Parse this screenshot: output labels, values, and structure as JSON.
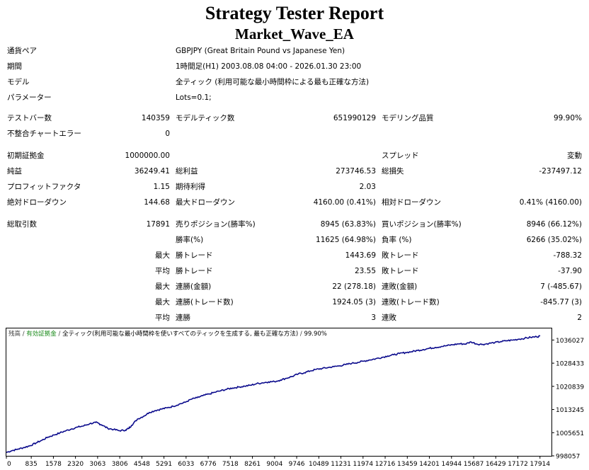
{
  "header": {
    "title": "Strategy Tester Report",
    "ea_name": "Market_Wave_EA"
  },
  "info": [
    {
      "label": "通貨ペア",
      "value": "GBPJPY (Great Britain Pound vs Japanese Yen)"
    },
    {
      "label": "期間",
      "value": "1時間足(H1) 2003.08.08 04:00 - 2026.01.30 23:00"
    },
    {
      "label": "モデル",
      "value": "全ティック (利用可能な最小時間枠による最も正確な方法)"
    },
    {
      "label": "パラメーター",
      "value": "Lots=0.1;"
    }
  ],
  "stats": {
    "test_bars": {
      "label": "テストバー数",
      "value": "140359"
    },
    "model_ticks": {
      "label": "モデルティック数",
      "value": "651990129"
    },
    "modeling_quality": {
      "label": "モデリング品質",
      "value": "99.90%"
    },
    "mismatched_errors": {
      "label": "不整合チャートエラー",
      "value": "0"
    },
    "initial_deposit": {
      "label": "初期証拠金",
      "value": "1000000.00"
    },
    "spread": {
      "label": "スプレッド",
      "value": "変動"
    },
    "net_profit": {
      "label": "純益",
      "value": "36249.41"
    },
    "gross_profit": {
      "label": "総利益",
      "value": "273746.53"
    },
    "gross_loss": {
      "label": "総損失",
      "value": "-237497.12"
    },
    "profit_factor": {
      "label": "プロフィットファクタ",
      "value": "1.15"
    },
    "expected_payoff": {
      "label": "期待利得",
      "value": "2.03"
    },
    "abs_drawdown": {
      "label": "絶対ドローダウン",
      "value": "144.68"
    },
    "max_drawdown": {
      "label": "最大ドローダウン",
      "value": "4160.00 (0.41%)"
    },
    "rel_drawdown": {
      "label": "相対ドローダウン",
      "value": "0.41% (4160.00)"
    },
    "total_trades": {
      "label": "総取引数",
      "value": "17891"
    },
    "short_positions": {
      "label": "売りポジション(勝率%)",
      "value": "8945 (63.83%)"
    },
    "long_positions": {
      "label": "買いポジション(勝率%)",
      "value": "8946 (66.12%)"
    },
    "profit_trades": {
      "label": "勝率(%)",
      "value": "11625 (64.98%)"
    },
    "loss_trades": {
      "label": "負率 (%)",
      "value": "6266 (35.02%)"
    },
    "largest_prefix": "最大",
    "average_prefix": "平均",
    "largest_profit": {
      "label": "勝トレード",
      "value": "1443.69"
    },
    "largest_loss": {
      "label": "敗トレード",
      "value": "-788.32"
    },
    "average_profit": {
      "label": "勝トレード",
      "value": "23.55"
    },
    "average_loss": {
      "label": "敗トレード",
      "value": "-37.90"
    },
    "max_consec_wins": {
      "label": "連勝(金額)",
      "value": "22 (278.18)"
    },
    "max_consec_losses": {
      "label": "連敗(金額)",
      "value": "7 (-485.67)"
    },
    "max_consec_profit": {
      "label": "連勝(トレード数)",
      "value": "1924.05 (3)"
    },
    "max_consec_loss": {
      "label": "連敗(トレード数)",
      "value": "-845.77 (3)"
    },
    "avg_consec_wins": {
      "label": "連勝",
      "value": "3"
    },
    "avg_consec_losses": {
      "label": "連敗",
      "value": "2"
    }
  },
  "chart_data": {
    "type": "line",
    "legend": {
      "balance": "残高",
      "sep1": " / ",
      "equity": "有効証拠金",
      "sep2": " / ",
      "model": "全ティック(利用可能な最小時間枠を使いすべてのティックを生成する, 最も正確な方法)",
      "sep3": " / ",
      "quality": "99.90%"
    },
    "x_ticks": [
      "0",
      "835",
      "1578",
      "2320",
      "3063",
      "3806",
      "4548",
      "5291",
      "6033",
      "6776",
      "7518",
      "8261",
      "9004",
      "9746",
      "10489",
      "11231",
      "11974",
      "12716",
      "13459",
      "14201",
      "14944",
      "15687",
      "16429",
      "17172",
      "17914"
    ],
    "y_ticks": [
      "1036027",
      "1028433",
      "1020839",
      "1013245",
      "1005651",
      "998057"
    ],
    "ylim": [
      998057,
      1039824
    ],
    "xlim": [
      0,
      18300
    ],
    "line_color": "#0a0a8c",
    "x": [
      0,
      200,
      400,
      600,
      800,
      1000,
      1200,
      1400,
      1600,
      1800,
      2000,
      2200,
      2400,
      2600,
      2800,
      3000,
      3100,
      3200,
      3400,
      3600,
      3800,
      4000,
      4100,
      4200,
      4400,
      4600,
      4800,
      5000,
      5200,
      5400,
      5600,
      5800,
      6000,
      6200,
      6400,
      6600,
      6800,
      7000,
      7200,
      7400,
      7600,
      7800,
      8000,
      8200,
      8400,
      8600,
      8800,
      9000,
      9200,
      9400,
      9600,
      9800,
      10000,
      10200,
      10400,
      10600,
      10800,
      11000,
      11200,
      11400,
      11600,
      11800,
      12000,
      12200,
      12400,
      12600,
      12800,
      13000,
      13200,
      13400,
      13600,
      13800,
      14000,
      14200,
      14400,
      14600,
      14800,
      15000,
      15200,
      15400,
      15600,
      15800,
      16000,
      16200,
      16400,
      16600,
      16800,
      17000,
      17200,
      17400,
      17600,
      17800,
      17914
    ],
    "y": [
      999200,
      999800,
      1000300,
      1000800,
      1001400,
      1002300,
      1003200,
      1004200,
      1004900,
      1005600,
      1006300,
      1006900,
      1007500,
      1007900,
      1008600,
      1009000,
      1008700,
      1008200,
      1007100,
      1006700,
      1006300,
      1006500,
      1007000,
      1008000,
      1010100,
      1011000,
      1012300,
      1012900,
      1013400,
      1013800,
      1014300,
      1015000,
      1015600,
      1016600,
      1017100,
      1017800,
      1018300,
      1018900,
      1019400,
      1019900,
      1020300,
      1020600,
      1020900,
      1021200,
      1021700,
      1022000,
      1022300,
      1022400,
      1022900,
      1023500,
      1024100,
      1024900,
      1025300,
      1025900,
      1026400,
      1026700,
      1027000,
      1027300,
      1027600,
      1028000,
      1028400,
      1028700,
      1029100,
      1029500,
      1029900,
      1030300,
      1030800,
      1031200,
      1031600,
      1031900,
      1032200,
      1032600,
      1032900,
      1033300,
      1033600,
      1033900,
      1034200,
      1034500,
      1034800,
      1034700,
      1035400,
      1034700,
      1034600,
      1034900,
      1035200,
      1035500,
      1035800,
      1036000,
      1036300,
      1036600,
      1036900,
      1037100,
      1037300
    ]
  }
}
